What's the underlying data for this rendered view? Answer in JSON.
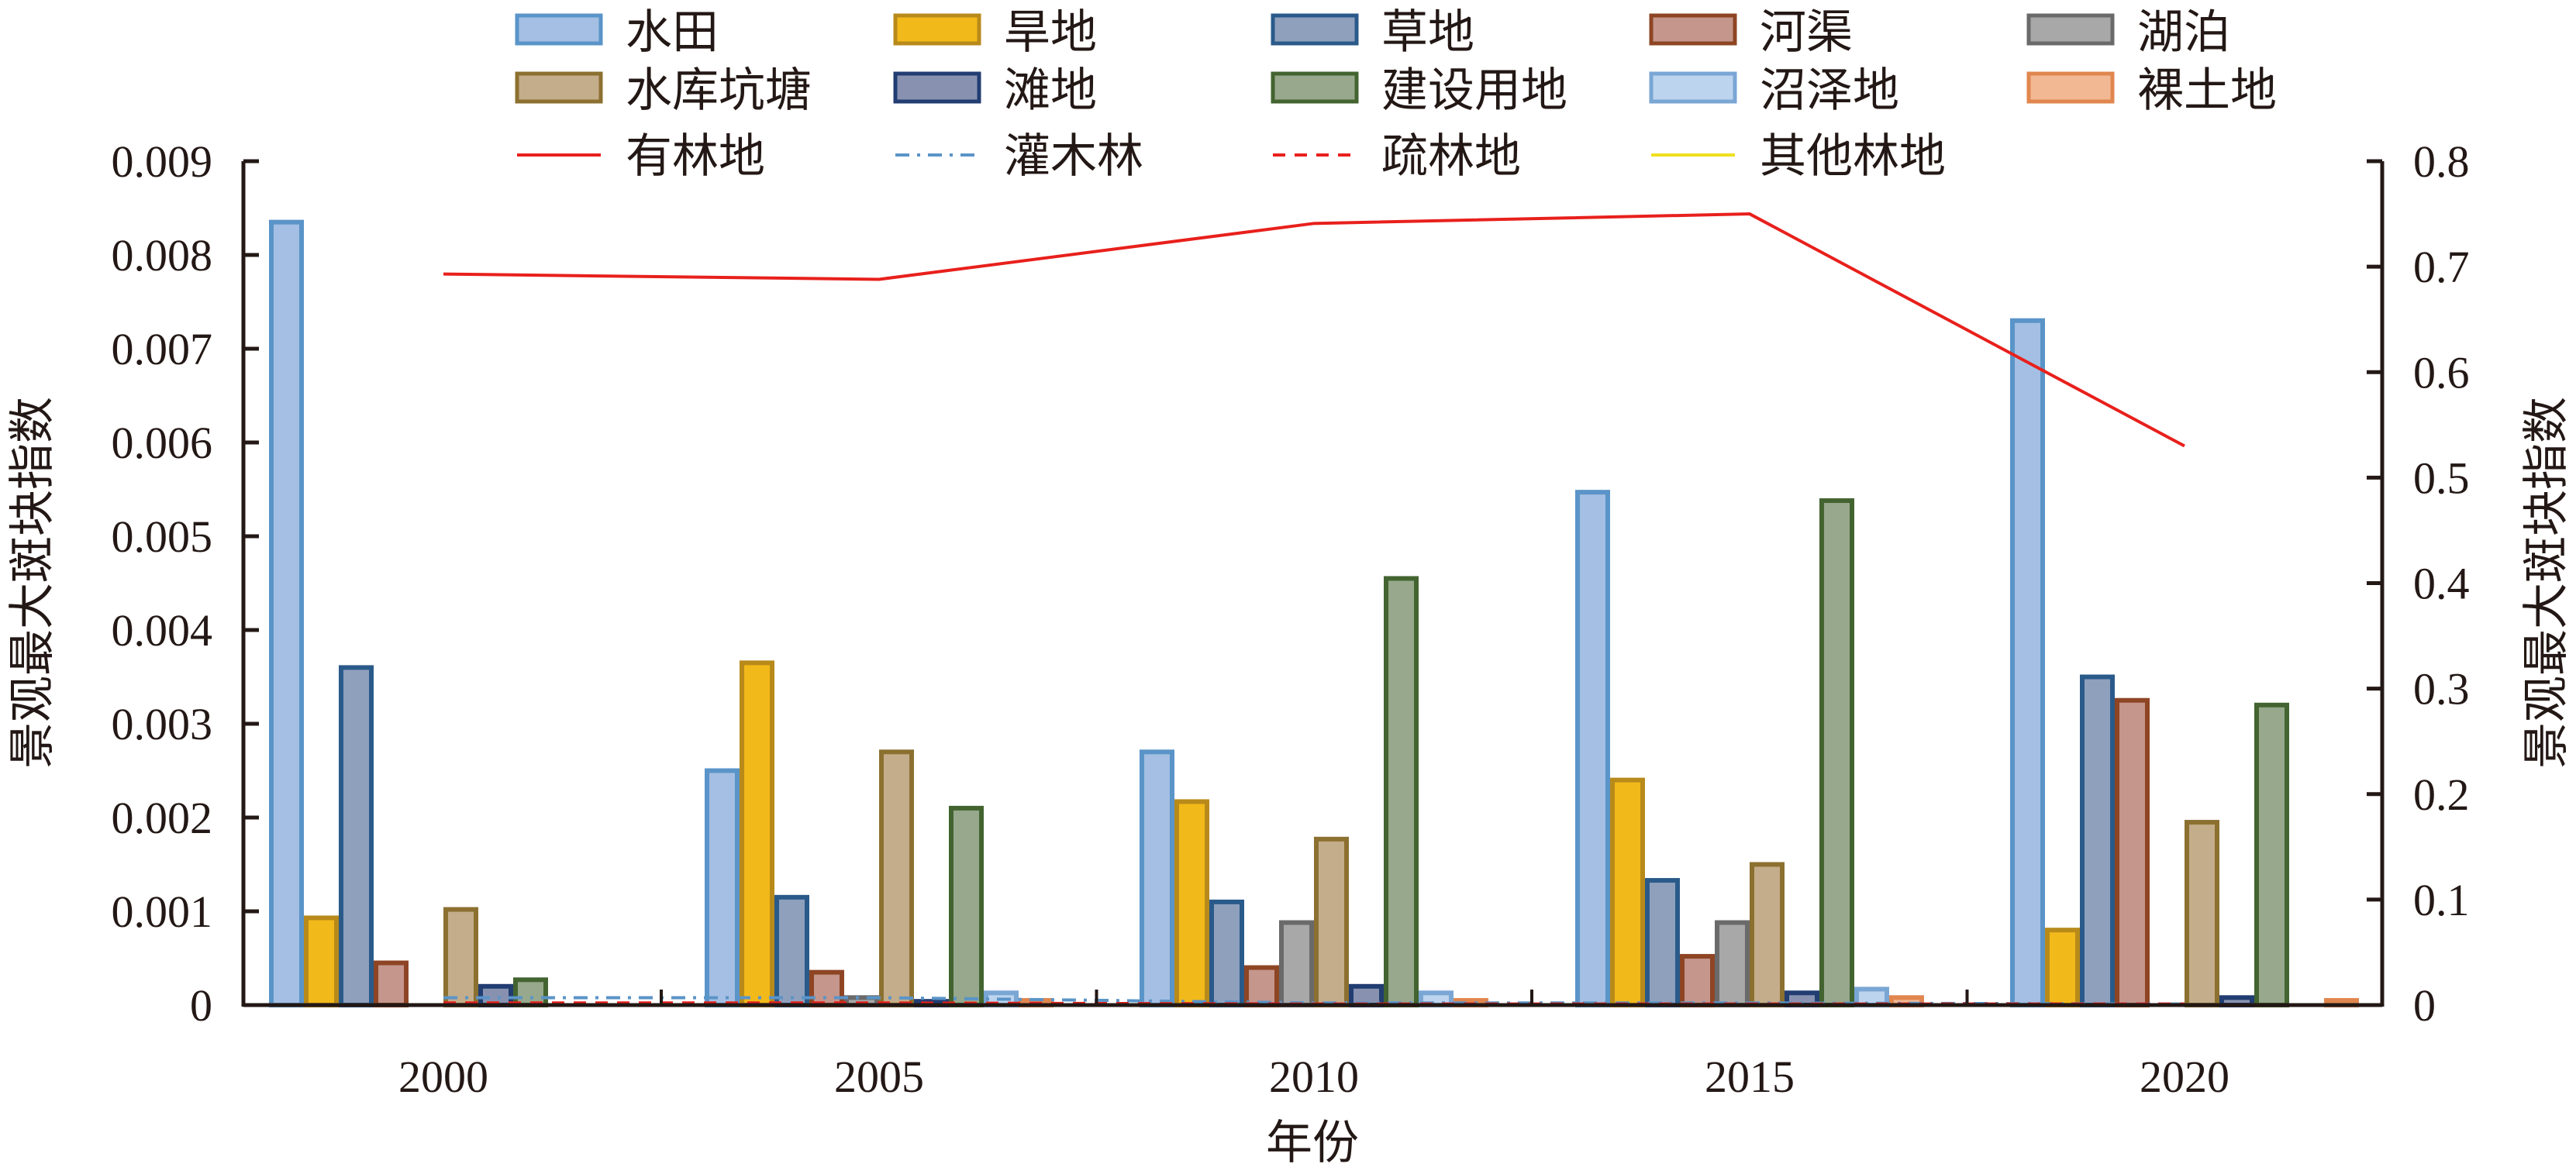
{
  "chart_data": {
    "type": "bar",
    "title": "",
    "xlabel": "年份",
    "ylabel": "景观最大斑块指数",
    "y2label": "景观最大斑块指数",
    "categories": [
      "2000",
      "2005",
      "2010",
      "2015",
      "2020"
    ],
    "ylim": [
      0,
      0.009
    ],
    "yticks": [
      "0",
      "0.001",
      "0.002",
      "0.003",
      "0.004",
      "0.005",
      "0.006",
      "0.007",
      "0.008",
      "0.009"
    ],
    "y2lim": [
      0,
      0.8
    ],
    "y2ticks": [
      "0",
      "0.1",
      "0.2",
      "0.3",
      "0.4",
      "0.5",
      "0.6",
      "0.7",
      "0.8"
    ],
    "grid": false,
    "legend_position": "top",
    "series": [
      {
        "name": "水田",
        "kind": "bar",
        "axis": "left",
        "fill": "#a4bfe3",
        "stroke": "#5a94c8",
        "values": [
          0.00835,
          0.0025,
          0.0027,
          0.00547,
          0.0073
        ]
      },
      {
        "name": "旱地",
        "kind": "bar",
        "axis": "left",
        "fill": "#f2b91a",
        "stroke": "#b88a1a",
        "values": [
          0.00093,
          0.00365,
          0.00217,
          0.0024,
          0.0008
        ]
      },
      {
        "name": "草地",
        "kind": "bar",
        "axis": "left",
        "fill": "#8fa0bd",
        "stroke": "#2a5a8a",
        "values": [
          0.0036,
          0.00115,
          0.0011,
          0.00133,
          0.0035
        ]
      },
      {
        "name": "河渠",
        "kind": "bar",
        "axis": "left",
        "fill": "#c4968c",
        "stroke": "#8e4524",
        "values": [
          0.00045,
          0.00035,
          0.0004,
          0.00052,
          0.00325
        ]
      },
      {
        "name": "湖泊",
        "kind": "bar",
        "axis": "left",
        "fill": "#a8a8a8",
        "stroke": "#6a6a6a",
        "values": [
          0,
          8e-05,
          0.00088,
          0.00088,
          0
        ]
      },
      {
        "name": "水库坑塘",
        "kind": "bar",
        "axis": "left",
        "fill": "#c4ad8a",
        "stroke": "#8c7030",
        "values": [
          0.00102,
          0.0027,
          0.00177,
          0.0015,
          0.00195
        ]
      },
      {
        "name": "滩地",
        "kind": "bar",
        "axis": "left",
        "fill": "#8892b0",
        "stroke": "#213d72",
        "values": [
          0.0002,
          4e-05,
          0.0002,
          0.00013,
          8e-05
        ]
      },
      {
        "name": "建设用地",
        "kind": "bar",
        "axis": "left",
        "fill": "#97a88c",
        "stroke": "#436430",
        "values": [
          0.00027,
          0.0021,
          0.00455,
          0.00538,
          0.0032
        ]
      },
      {
        "name": "沼泽地",
        "kind": "bar",
        "axis": "left",
        "fill": "#bcd4ee",
        "stroke": "#7aa6d4",
        "values": [
          0,
          0.00013,
          0.00013,
          0.00017,
          0
        ]
      },
      {
        "name": "裸土地",
        "kind": "bar",
        "axis": "left",
        "fill": "#f2b894",
        "stroke": "#e0864e",
        "values": [
          0,
          5e-05,
          5e-05,
          8e-05,
          5e-05
        ]
      },
      {
        "name": "有林地",
        "kind": "line",
        "axis": "right",
        "stroke": "#e8201c",
        "dash": "",
        "values": [
          0.693,
          0.688,
          0.741,
          0.75,
          0.53
        ]
      },
      {
        "name": "灌木林",
        "kind": "line",
        "axis": "right",
        "stroke": "#5a94c8",
        "dash": "18,10,4,10",
        "values": [
          0.007,
          0.007,
          0.002,
          0.002,
          0.001
        ]
      },
      {
        "name": "疏林地",
        "kind": "line",
        "axis": "right",
        "stroke": "#e8201c",
        "dash": "16,12",
        "values": [
          0.002,
          0.002,
          0.001,
          0.001,
          0.001
        ]
      },
      {
        "name": "其他林地",
        "kind": "line",
        "axis": "right",
        "stroke": "#f0e020",
        "dash": "",
        "values": [
          0,
          0,
          0,
          0,
          0
        ]
      }
    ]
  }
}
